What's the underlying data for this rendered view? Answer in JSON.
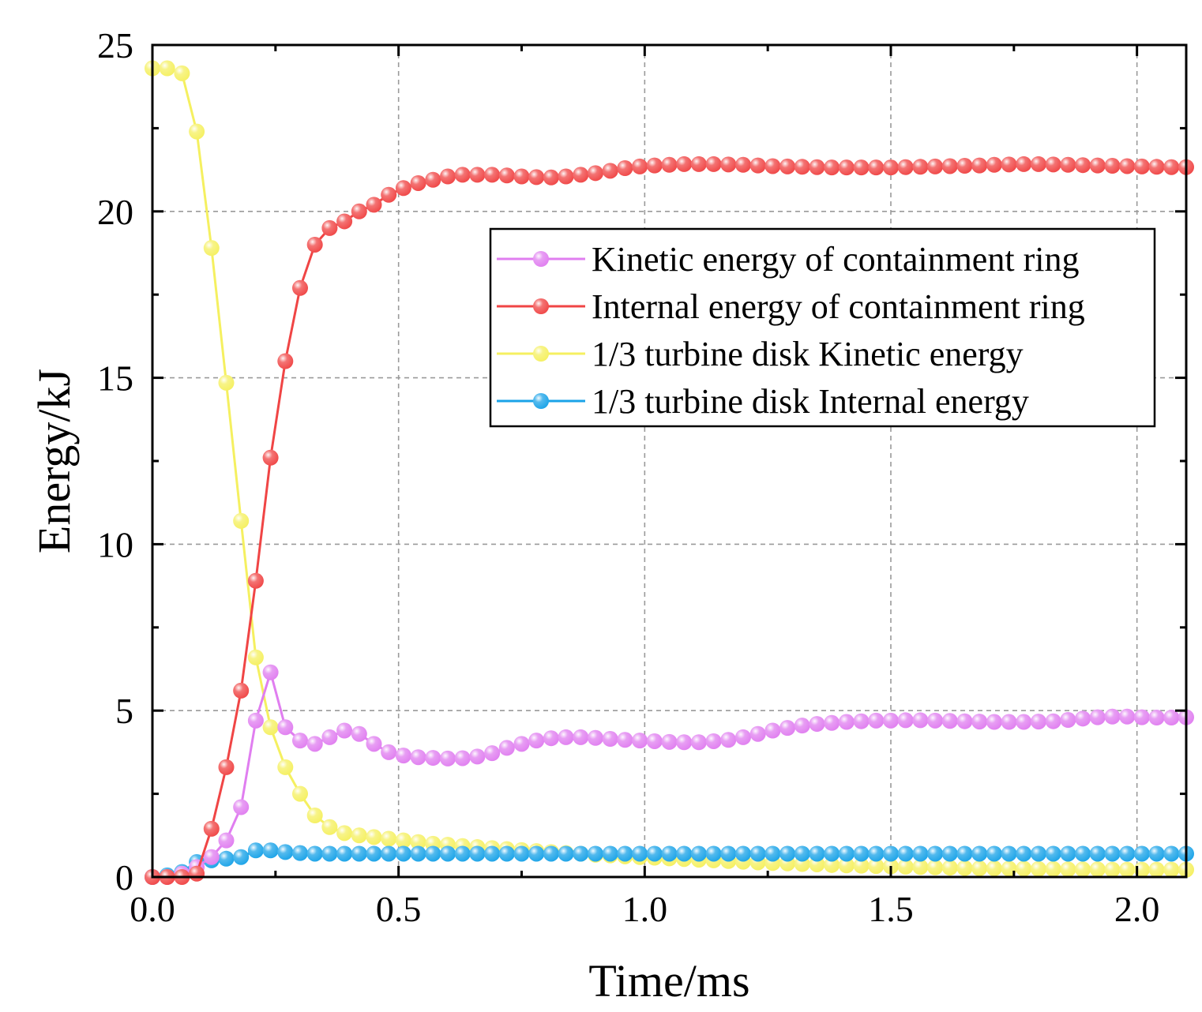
{
  "chart_data": {
    "type": "line",
    "title": "",
    "xlabel": "Time/ms",
    "ylabel": "Energy/kJ",
    "xlim": [
      0.0,
      2.1
    ],
    "ylim": [
      0,
      25
    ],
    "xticks": [
      0.0,
      0.5,
      1.0,
      1.5,
      2.0
    ],
    "xtick_labels": [
      "0.0",
      "0.5",
      "1.0",
      "1.5",
      "2.0"
    ],
    "yticks": [
      0,
      5,
      10,
      15,
      20,
      25
    ],
    "ytick_labels": [
      "0",
      "5",
      "10",
      "15",
      "20",
      "25"
    ],
    "grid": true,
    "legend_position": "upper-right",
    "x": [
      0.0,
      0.03,
      0.06,
      0.09,
      0.12,
      0.15,
      0.18,
      0.21,
      0.24,
      0.27,
      0.3,
      0.33,
      0.36,
      0.39,
      0.42,
      0.45,
      0.48,
      0.51,
      0.54,
      0.57,
      0.6,
      0.63,
      0.66,
      0.69,
      0.72,
      0.75,
      0.78,
      0.81,
      0.84,
      0.87,
      0.9,
      0.93,
      0.96,
      0.99,
      1.02,
      1.05,
      1.08,
      1.11,
      1.14,
      1.17,
      1.2,
      1.23,
      1.26,
      1.29,
      1.32,
      1.35,
      1.38,
      1.41,
      1.44,
      1.47,
      1.5,
      1.53,
      1.56,
      1.59,
      1.62,
      1.65,
      1.68,
      1.71,
      1.74,
      1.77,
      1.8,
      1.83,
      1.86,
      1.89,
      1.92,
      1.95,
      1.98,
      2.01,
      2.04,
      2.07,
      2.1
    ],
    "series": [
      {
        "name": "Kinetic energy of containment ring",
        "color": "#e07ef0",
        "values": [
          0.0,
          0.0,
          0.1,
          0.3,
          0.6,
          1.1,
          2.1,
          4.7,
          6.15,
          4.5,
          4.1,
          4.0,
          4.2,
          4.4,
          4.3,
          4.0,
          3.75,
          3.65,
          3.6,
          3.58,
          3.56,
          3.57,
          3.62,
          3.72,
          3.88,
          4.0,
          4.1,
          4.17,
          4.2,
          4.2,
          4.18,
          4.15,
          4.12,
          4.1,
          4.08,
          4.06,
          4.05,
          4.05,
          4.08,
          4.12,
          4.2,
          4.3,
          4.4,
          4.48,
          4.55,
          4.6,
          4.63,
          4.66,
          4.68,
          4.7,
          4.7,
          4.71,
          4.71,
          4.7,
          4.69,
          4.68,
          4.67,
          4.66,
          4.66,
          4.66,
          4.67,
          4.68,
          4.72,
          4.76,
          4.8,
          4.82,
          4.82,
          4.8,
          4.79,
          4.79,
          4.8
        ]
      },
      {
        "name": "Internal energy of containment ring",
        "color": "#f04545",
        "values": [
          0.0,
          0.0,
          0.0,
          0.1,
          1.45,
          3.3,
          5.6,
          8.9,
          12.6,
          15.5,
          17.7,
          19.0,
          19.5,
          19.7,
          20.0,
          20.2,
          20.5,
          20.7,
          20.85,
          20.95,
          21.05,
          21.1,
          21.1,
          21.1,
          21.08,
          21.05,
          21.03,
          21.02,
          21.05,
          21.1,
          21.15,
          21.22,
          21.3,
          21.35,
          21.38,
          21.4,
          21.42,
          21.42,
          21.42,
          21.41,
          21.4,
          21.38,
          21.36,
          21.35,
          21.34,
          21.33,
          21.32,
          21.32,
          21.32,
          21.32,
          21.32,
          21.33,
          21.34,
          21.35,
          21.36,
          21.37,
          21.38,
          21.4,
          21.41,
          21.42,
          21.42,
          21.41,
          21.4,
          21.39,
          21.38,
          21.37,
          21.36,
          21.35,
          21.34,
          21.33,
          21.33
        ]
      },
      {
        "name": "1/3 turbine disk Kinetic energy",
        "color": "#f5f060",
        "values": [
          24.3,
          24.3,
          24.15,
          22.4,
          18.9,
          14.85,
          10.7,
          6.6,
          4.5,
          3.3,
          2.5,
          1.85,
          1.5,
          1.32,
          1.25,
          1.2,
          1.15,
          1.1,
          1.05,
          1.0,
          0.97,
          0.93,
          0.9,
          0.87,
          0.84,
          0.81,
          0.78,
          0.75,
          0.72,
          0.7,
          0.67,
          0.65,
          0.62,
          0.6,
          0.58,
          0.56,
          0.54,
          0.52,
          0.5,
          0.48,
          0.46,
          0.44,
          0.42,
          0.41,
          0.39,
          0.38,
          0.36,
          0.35,
          0.34,
          0.33,
          0.32,
          0.31,
          0.3,
          0.29,
          0.28,
          0.27,
          0.26,
          0.26,
          0.25,
          0.25,
          0.24,
          0.24,
          0.23,
          0.23,
          0.23,
          0.22,
          0.22,
          0.22,
          0.22,
          0.22,
          0.22
        ]
      },
      {
        "name": "1/3 turbine disk Internal energy",
        "color": "#1aa3e8",
        "values": [
          0.0,
          0.05,
          0.15,
          0.45,
          0.5,
          0.55,
          0.6,
          0.8,
          0.8,
          0.75,
          0.72,
          0.7,
          0.7,
          0.7,
          0.7,
          0.7,
          0.7,
          0.7,
          0.7,
          0.7,
          0.7,
          0.7,
          0.7,
          0.7,
          0.7,
          0.7,
          0.7,
          0.7,
          0.7,
          0.7,
          0.7,
          0.7,
          0.7,
          0.7,
          0.7,
          0.7,
          0.7,
          0.7,
          0.7,
          0.7,
          0.7,
          0.7,
          0.7,
          0.7,
          0.7,
          0.7,
          0.7,
          0.7,
          0.7,
          0.7,
          0.7,
          0.7,
          0.7,
          0.7,
          0.7,
          0.7,
          0.7,
          0.7,
          0.7,
          0.7,
          0.7,
          0.7,
          0.7,
          0.7,
          0.7,
          0.7,
          0.7,
          0.7,
          0.7,
          0.7,
          0.7
        ]
      }
    ]
  }
}
